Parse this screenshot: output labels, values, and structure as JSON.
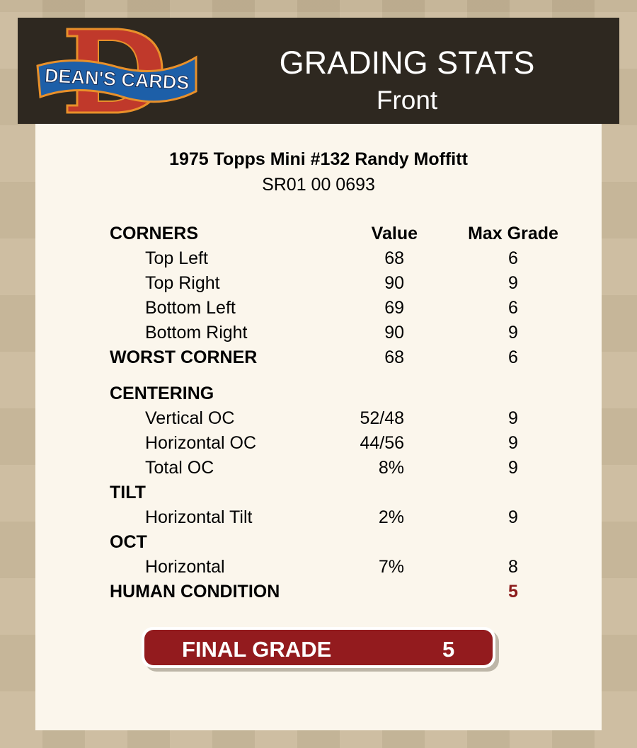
{
  "header": {
    "logo_text": "DEAN'S CARDS",
    "title": "GRADING STATS",
    "subtitle": "Front"
  },
  "card": {
    "name": "1975 Topps Mini #132 Randy Moffitt",
    "serial": "SR01 00 0693"
  },
  "columns": {
    "value": "Value",
    "max_grade": "Max Grade"
  },
  "rows": [
    {
      "type": "head",
      "label": "CORNERS",
      "value": "",
      "max": ""
    },
    {
      "type": "sub",
      "label": "Top Left",
      "value": "68",
      "max": "6"
    },
    {
      "type": "sub",
      "label": "Top Right",
      "value": "90",
      "max": "9"
    },
    {
      "type": "sub",
      "label": "Bottom Left",
      "value": "69",
      "max": "6"
    },
    {
      "type": "sub",
      "label": "Bottom Right",
      "value": "90",
      "max": "9"
    },
    {
      "type": "section",
      "label": "WORST CORNER",
      "value": "68",
      "max": "6"
    },
    {
      "type": "section gap",
      "label": "CENTERING",
      "value": "",
      "max": ""
    },
    {
      "type": "sub",
      "label": "Vertical OC",
      "value": "52/48",
      "max": "9"
    },
    {
      "type": "sub",
      "label": "Horizontal OC",
      "value": "44/56",
      "max": "9"
    },
    {
      "type": "sub",
      "label": "Total OC",
      "value": "8%",
      "max": "9"
    },
    {
      "type": "section",
      "label": "TILT",
      "value": "",
      "max": ""
    },
    {
      "type": "sub",
      "label": "Horizontal Tilt",
      "value": "2%",
      "max": "9"
    },
    {
      "type": "section",
      "label": "OCT",
      "value": "",
      "max": ""
    },
    {
      "type": "sub",
      "label": "Horizontal",
      "value": "7%",
      "max": "8"
    },
    {
      "type": "section human",
      "label": "HUMAN CONDITION",
      "value": "",
      "max": "5"
    }
  ],
  "final": {
    "label": "FINAL GRADE",
    "value": "5"
  },
  "colors": {
    "header_bg": "#2e2820",
    "panel_bg": "#fbf6ec",
    "accent_red": "#931b1e",
    "human_condition": "#8b1a1a"
  }
}
